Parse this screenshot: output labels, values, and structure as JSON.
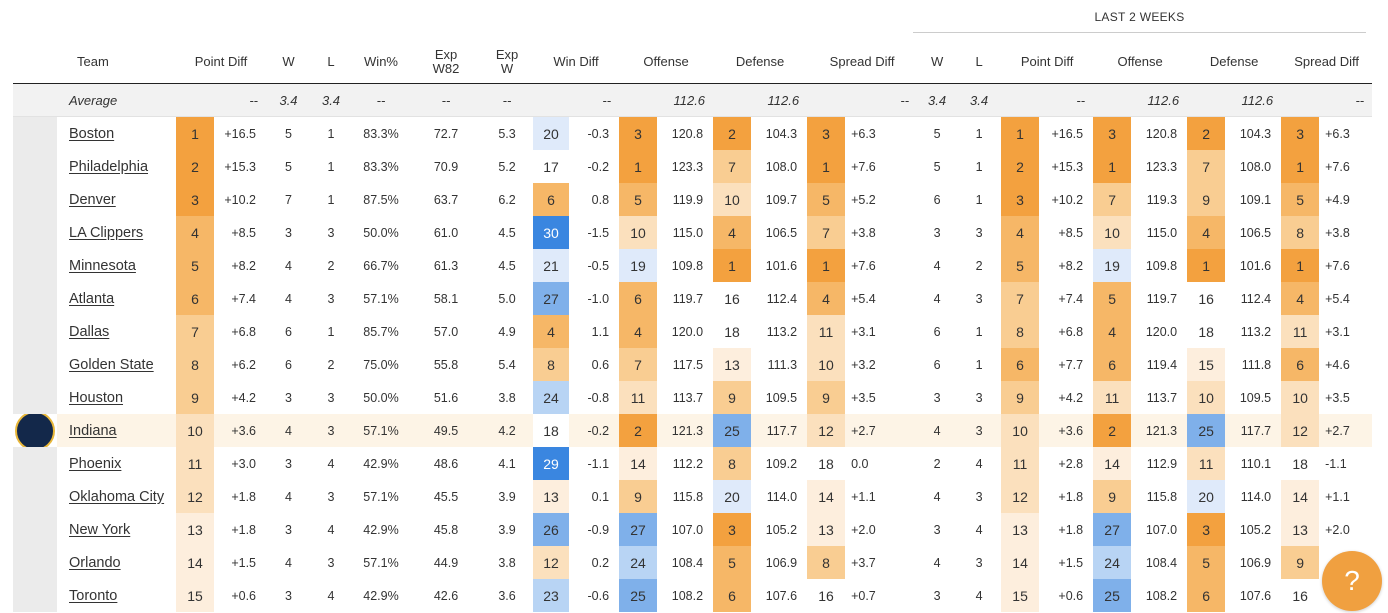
{
  "group_header": "LAST 2 WEEKS",
  "columns": [
    "Team",
    "Point Diff",
    "W",
    "L",
    "Win%",
    "Exp W82",
    "Exp W",
    "Win Diff",
    "Offense",
    "Defense",
    "Spread Diff",
    "W",
    "L",
    "Point Diff",
    "Offense",
    "Defense",
    "Spread Diff"
  ],
  "average": {
    "label": "Average",
    "point_diff": "--",
    "w": "3.4",
    "l": "3.4",
    "win_pct": "--",
    "exp_w82": "--",
    "exp_w": "--",
    "win_diff": "--",
    "offense": "112.6",
    "defense": "112.6",
    "spread_diff": "--",
    "l2w_w": "3.4",
    "l2w_l": "3.4",
    "l2w_point_diff": "--",
    "l2w_offense": "112.6",
    "l2w_defense": "112.6",
    "l2w_spread_diff": "--"
  },
  "colors": {
    "orange_1": "#f3a13f",
    "orange_2": "#f6b767",
    "orange_3": "#f9cd92",
    "orange_4": "#fbe0bd",
    "orange_5": "#fdeedd",
    "blue_1": "#3a86e0",
    "blue_2": "#7fb0ea",
    "blue_3": "#b8d4f4",
    "blue_4": "#dfeafa",
    "highlight_row": "#fdf4e6",
    "help_button": "#f0a040"
  },
  "help_icon": "question-mark-icon",
  "teams": [
    {
      "name": "Boston",
      "rank": "1",
      "pd": "+16.5",
      "w": "5",
      "l": "1",
      "pct": "83.3%",
      "ew82": "72.7",
      "ew": "5.3",
      "wd_rank": "20",
      "wd": "-0.3",
      "off_rank": "3",
      "off": "120.8",
      "def_rank": "2",
      "def": "104.3",
      "sd_rank": "3",
      "sd": "+6.3",
      "l_w": "5",
      "l_l": "1",
      "l_pd_rank": "1",
      "l_pd": "+16.5",
      "l_off_rank": "3",
      "l_off": "120.8",
      "l_def_rank": "2",
      "l_def": "104.3",
      "l_sd_rank": "3",
      "l_sd": "+6.3",
      "logo": "celtics-logo"
    },
    {
      "name": "Philadelphia",
      "rank": "2",
      "pd": "+15.3",
      "w": "5",
      "l": "1",
      "pct": "83.3%",
      "ew82": "70.9",
      "ew": "5.2",
      "wd_rank": "17",
      "wd": "-0.2",
      "off_rank": "1",
      "off": "123.3",
      "def_rank": "7",
      "def": "108.0",
      "sd_rank": "1",
      "sd": "+7.6",
      "l_w": "5",
      "l_l": "1",
      "l_pd_rank": "2",
      "l_pd": "+15.3",
      "l_off_rank": "1",
      "l_off": "123.3",
      "l_def_rank": "7",
      "l_def": "108.0",
      "l_sd_rank": "1",
      "l_sd": "+7.6",
      "logo": "76ers-logo"
    },
    {
      "name": "Denver",
      "rank": "3",
      "pd": "+10.2",
      "w": "7",
      "l": "1",
      "pct": "87.5%",
      "ew82": "63.7",
      "ew": "6.2",
      "wd_rank": "6",
      "wd": "0.8",
      "off_rank": "5",
      "off": "119.9",
      "def_rank": "10",
      "def": "109.7",
      "sd_rank": "5",
      "sd": "+5.2",
      "l_w": "6",
      "l_l": "1",
      "l_pd_rank": "3",
      "l_pd": "+10.2",
      "l_off_rank": "7",
      "l_off": "119.3",
      "l_def_rank": "9",
      "l_def": "109.1",
      "l_sd_rank": "5",
      "l_sd": "+4.9",
      "logo": "nuggets-logo"
    },
    {
      "name": "LA Clippers",
      "rank": "4",
      "pd": "+8.5",
      "w": "3",
      "l": "3",
      "pct": "50.0%",
      "ew82": "61.0",
      "ew": "4.5",
      "wd_rank": "30",
      "wd": "-1.5",
      "off_rank": "10",
      "off": "115.0",
      "def_rank": "4",
      "def": "106.5",
      "sd_rank": "7",
      "sd": "+3.8",
      "l_w": "3",
      "l_l": "3",
      "l_pd_rank": "4",
      "l_pd": "+8.5",
      "l_off_rank": "10",
      "l_off": "115.0",
      "l_def_rank": "4",
      "l_def": "106.5",
      "l_sd_rank": "8",
      "l_sd": "+3.8",
      "logo": "clippers-logo"
    },
    {
      "name": "Minnesota",
      "rank": "5",
      "pd": "+8.2",
      "w": "4",
      "l": "2",
      "pct": "66.7%",
      "ew82": "61.3",
      "ew": "4.5",
      "wd_rank": "21",
      "wd": "-0.5",
      "off_rank": "19",
      "off": "109.8",
      "def_rank": "1",
      "def": "101.6",
      "sd_rank": "1",
      "sd": "+7.6",
      "l_w": "4",
      "l_l": "2",
      "l_pd_rank": "5",
      "l_pd": "+8.2",
      "l_off_rank": "19",
      "l_off": "109.8",
      "l_def_rank": "1",
      "l_def": "101.6",
      "l_sd_rank": "1",
      "l_sd": "+7.6",
      "logo": "timberwolves-logo"
    },
    {
      "name": "Atlanta",
      "rank": "6",
      "pd": "+7.4",
      "w": "4",
      "l": "3",
      "pct": "57.1%",
      "ew82": "58.1",
      "ew": "5.0",
      "wd_rank": "27",
      "wd": "-1.0",
      "off_rank": "6",
      "off": "119.7",
      "def_rank": "16",
      "def": "112.4",
      "sd_rank": "4",
      "sd": "+5.4",
      "l_w": "4",
      "l_l": "3",
      "l_pd_rank": "7",
      "l_pd": "+7.4",
      "l_off_rank": "5",
      "l_off": "119.7",
      "l_def_rank": "16",
      "l_def": "112.4",
      "l_sd_rank": "4",
      "l_sd": "+5.4",
      "logo": "hawks-logo"
    },
    {
      "name": "Dallas",
      "rank": "7",
      "pd": "+6.8",
      "w": "6",
      "l": "1",
      "pct": "85.7%",
      "ew82": "57.0",
      "ew": "4.9",
      "wd_rank": "4",
      "wd": "1.1",
      "off_rank": "4",
      "off": "120.0",
      "def_rank": "18",
      "def": "113.2",
      "sd_rank": "11",
      "sd": "+3.1",
      "l_w": "6",
      "l_l": "1",
      "l_pd_rank": "8",
      "l_pd": "+6.8",
      "l_off_rank": "4",
      "l_off": "120.0",
      "l_def_rank": "18",
      "l_def": "113.2",
      "l_sd_rank": "11",
      "l_sd": "+3.1",
      "logo": "mavericks-logo"
    },
    {
      "name": "Golden State",
      "rank": "8",
      "pd": "+6.2",
      "w": "6",
      "l": "2",
      "pct": "75.0%",
      "ew82": "55.8",
      "ew": "5.4",
      "wd_rank": "8",
      "wd": "0.6",
      "off_rank": "7",
      "off": "117.5",
      "def_rank": "13",
      "def": "111.3",
      "sd_rank": "10",
      "sd": "+3.2",
      "l_w": "6",
      "l_l": "1",
      "l_pd_rank": "6",
      "l_pd": "+7.7",
      "l_off_rank": "6",
      "l_off": "119.4",
      "l_def_rank": "15",
      "l_def": "111.8",
      "l_sd_rank": "6",
      "l_sd": "+4.6",
      "logo": "warriors-logo"
    },
    {
      "name": "Houston",
      "rank": "9",
      "pd": "+4.2",
      "w": "3",
      "l": "3",
      "pct": "50.0%",
      "ew82": "51.6",
      "ew": "3.8",
      "wd_rank": "24",
      "wd": "-0.8",
      "off_rank": "11",
      "off": "113.7",
      "def_rank": "9",
      "def": "109.5",
      "sd_rank": "9",
      "sd": "+3.5",
      "l_w": "3",
      "l_l": "3",
      "l_pd_rank": "9",
      "l_pd": "+4.2",
      "l_off_rank": "11",
      "l_off": "113.7",
      "l_def_rank": "10",
      "l_def": "109.5",
      "l_sd_rank": "10",
      "l_sd": "+3.5",
      "logo": "rockets-logo"
    },
    {
      "name": "Indiana",
      "rank": "10",
      "pd": "+3.6",
      "w": "4",
      "l": "3",
      "pct": "57.1%",
      "ew82": "49.5",
      "ew": "4.2",
      "wd_rank": "18",
      "wd": "-0.2",
      "off_rank": "2",
      "off": "121.3",
      "def_rank": "25",
      "def": "117.7",
      "sd_rank": "12",
      "sd": "+2.7",
      "l_w": "4",
      "l_l": "3",
      "l_pd_rank": "10",
      "l_pd": "+3.6",
      "l_off_rank": "2",
      "l_off": "121.3",
      "l_def_rank": "25",
      "l_def": "117.7",
      "l_sd_rank": "12",
      "l_sd": "+2.7",
      "logo": "pacers-logo",
      "highlight": true
    },
    {
      "name": "Phoenix",
      "rank": "11",
      "pd": "+3.0",
      "w": "3",
      "l": "4",
      "pct": "42.9%",
      "ew82": "48.6",
      "ew": "4.1",
      "wd_rank": "29",
      "wd": "-1.1",
      "off_rank": "14",
      "off": "112.2",
      "def_rank": "8",
      "def": "109.2",
      "sd_rank": "18",
      "sd": "0.0",
      "l_w": "2",
      "l_l": "4",
      "l_pd_rank": "11",
      "l_pd": "+2.8",
      "l_off_rank": "14",
      "l_off": "112.9",
      "l_def_rank": "11",
      "l_def": "110.1",
      "l_sd_rank": "18",
      "l_sd": "-1.1",
      "logo": "suns-logo"
    },
    {
      "name": "Oklahoma City",
      "rank": "12",
      "pd": "+1.8",
      "w": "4",
      "l": "3",
      "pct": "57.1%",
      "ew82": "45.5",
      "ew": "3.9",
      "wd_rank": "13",
      "wd": "0.1",
      "off_rank": "9",
      "off": "115.8",
      "def_rank": "20",
      "def": "114.0",
      "sd_rank": "14",
      "sd": "+1.1",
      "l_w": "4",
      "l_l": "3",
      "l_pd_rank": "12",
      "l_pd": "+1.8",
      "l_off_rank": "9",
      "l_off": "115.8",
      "l_def_rank": "20",
      "l_def": "114.0",
      "l_sd_rank": "14",
      "l_sd": "+1.1",
      "logo": "thunder-logo"
    },
    {
      "name": "New York",
      "rank": "13",
      "pd": "+1.8",
      "w": "3",
      "l": "4",
      "pct": "42.9%",
      "ew82": "45.8",
      "ew": "3.9",
      "wd_rank": "26",
      "wd": "-0.9",
      "off_rank": "27",
      "off": "107.0",
      "def_rank": "3",
      "def": "105.2",
      "sd_rank": "13",
      "sd": "+2.0",
      "l_w": "3",
      "l_l": "4",
      "l_pd_rank": "13",
      "l_pd": "+1.8",
      "l_off_rank": "27",
      "l_off": "107.0",
      "l_def_rank": "3",
      "l_def": "105.2",
      "l_sd_rank": "13",
      "l_sd": "+2.0",
      "logo": "knicks-logo"
    },
    {
      "name": "Orlando",
      "rank": "14",
      "pd": "+1.5",
      "w": "4",
      "l": "3",
      "pct": "57.1%",
      "ew82": "44.9",
      "ew": "3.8",
      "wd_rank": "12",
      "wd": "0.2",
      "off_rank": "24",
      "off": "108.4",
      "def_rank": "5",
      "def": "106.9",
      "sd_rank": "8",
      "sd": "+3.7",
      "l_w": "4",
      "l_l": "3",
      "l_pd_rank": "14",
      "l_pd": "+1.5",
      "l_off_rank": "24",
      "l_off": "108.4",
      "l_def_rank": "5",
      "l_def": "106.9",
      "l_sd_rank": "9",
      "l_sd": "",
      "logo": "magic-logo"
    },
    {
      "name": "Toronto",
      "rank": "15",
      "pd": "+0.6",
      "w": "3",
      "l": "4",
      "pct": "42.9%",
      "ew82": "42.6",
      "ew": "3.6",
      "wd_rank": "23",
      "wd": "-0.6",
      "off_rank": "25",
      "off": "108.2",
      "def_rank": "6",
      "def": "107.6",
      "sd_rank": "16",
      "sd": "+0.7",
      "l_w": "3",
      "l_l": "4",
      "l_pd_rank": "15",
      "l_pd": "+0.6",
      "l_off_rank": "25",
      "l_off": "108.2",
      "l_def_rank": "6",
      "l_def": "107.6",
      "l_sd_rank": "16",
      "l_sd": "",
      "logo": "raptors-logo"
    }
  ]
}
